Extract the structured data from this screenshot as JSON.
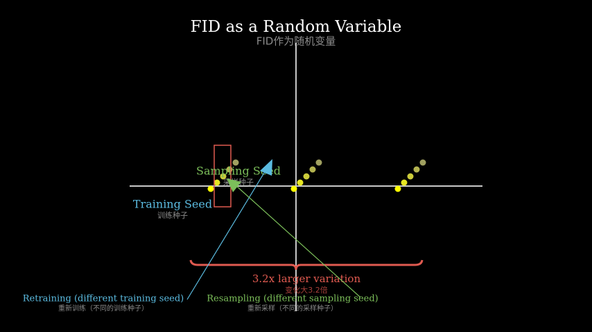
{
  "title": "FID as a Random Variable",
  "subtitle": "FID作为随机变量",
  "labels": {
    "sampling_seed": {
      "en": "Sampling Seed",
      "zh": "采样种子"
    },
    "training_seed": {
      "en": "Training Seed",
      "zh": "训练种子"
    },
    "variation": {
      "en": "3.2x larger variation",
      "zh": "变化大3.2倍"
    },
    "retraining": {
      "en": "Retraining (different training seed)",
      "zh": "重新训练（不同的训练种子）"
    },
    "resampling": {
      "en": "Resampling (different sampling seed)",
      "zh": "重新采样（不同的采样种子）"
    }
  }
}
